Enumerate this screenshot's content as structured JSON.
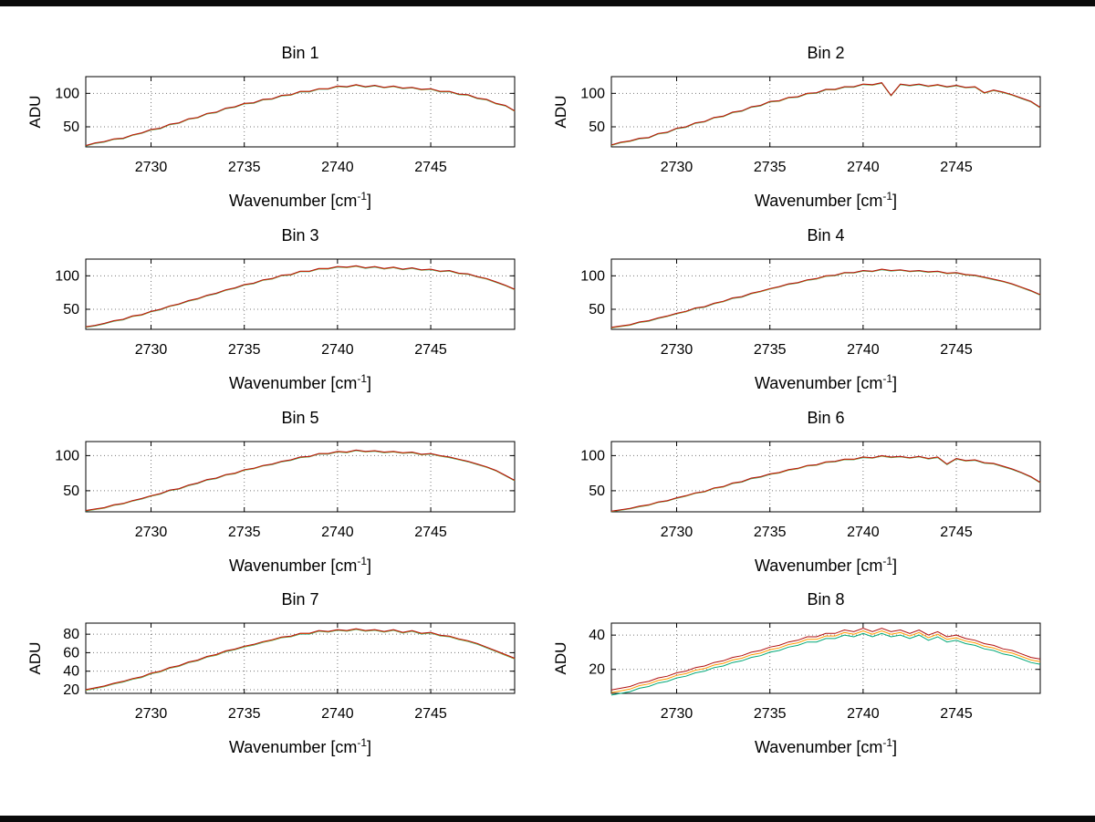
{
  "figure": {
    "background": "#ffffff",
    "border_color": "#0a0a0a"
  },
  "labels": {
    "xlabel_pre": "Wavenumber [cm",
    "xlabel_sup": "-1",
    "xlabel_post": "]"
  },
  "chart_data": {
    "type": "line",
    "x_label": "Wavenumber [cm^-1]",
    "y_label": "ADU",
    "x_start": 2726.5,
    "x_step": 0.5,
    "x_lim": [
      2726.5,
      2749.5
    ],
    "x_ticks": [
      2730,
      2735,
      2740,
      2745
    ],
    "grid": "dotted",
    "bins": [
      {
        "title": "Bin 1",
        "ylabel": "ADU",
        "y_lim": [
          20,
          125
        ],
        "y_ticks": [
          50,
          100
        ],
        "values": [
          22,
          26,
          28,
          32,
          33,
          38,
          41,
          46,
          48,
          54,
          56,
          62,
          64,
          70,
          72,
          78,
          80,
          85,
          86,
          91,
          92,
          97,
          98,
          103,
          103,
          107,
          107,
          111,
          110,
          113,
          110,
          112,
          109,
          111,
          108,
          109,
          106,
          107,
          103,
          103,
          99,
          98,
          93,
          91,
          85,
          82,
          74
        ],
        "series": [
          {
            "name": "trace-green",
            "color": "#00a878",
            "offset": -0.8
          },
          {
            "name": "trace-orange",
            "color": "#ff9900",
            "offset": -0.4
          },
          {
            "name": "trace-red",
            "color": "#b01010",
            "offset": 0
          }
        ]
      },
      {
        "title": "Bin 2",
        "ylabel": "ADU",
        "y_lim": [
          20,
          125
        ],
        "y_ticks": [
          50,
          100
        ],
        "values": [
          23,
          27,
          29,
          33,
          34,
          40,
          42,
          48,
          50,
          56,
          58,
          64,
          66,
          72,
          74,
          80,
          82,
          88,
          89,
          94,
          95,
          100,
          101,
          106,
          106,
          110,
          110,
          114,
          113,
          116,
          97,
          114,
          112,
          114,
          111,
          113,
          110,
          112,
          109,
          110,
          101,
          105,
          102,
          98,
          93,
          88,
          79
        ],
        "series": [
          {
            "name": "trace-green",
            "color": "#00a878",
            "offset": -0.8
          },
          {
            "name": "trace-orange",
            "color": "#ff9900",
            "offset": -0.4
          },
          {
            "name": "trace-red",
            "color": "#b01010",
            "offset": 0
          }
        ]
      },
      {
        "title": "Bin 3",
        "ylabel": "",
        "y_lim": [
          20,
          125
        ],
        "y_ticks": [
          50,
          100
        ],
        "values": [
          24,
          26,
          29,
          33,
          35,
          40,
          42,
          47,
          50,
          55,
          58,
          63,
          66,
          71,
          74,
          79,
          82,
          87,
          89,
          94,
          96,
          101,
          102,
          107,
          107,
          111,
          111,
          114,
          113,
          115,
          112,
          114,
          111,
          113,
          110,
          112,
          109,
          110,
          107,
          108,
          104,
          103,
          99,
          96,
          91,
          86,
          80
        ],
        "series": [
          {
            "name": "trace-green",
            "color": "#00a878",
            "offset": -0.8
          },
          {
            "name": "trace-orange",
            "color": "#ff9900",
            "offset": -0.4
          },
          {
            "name": "trace-red",
            "color": "#b01010",
            "offset": 0
          }
        ]
      },
      {
        "title": "Bin 4",
        "ylabel": "",
        "y_lim": [
          20,
          125
        ],
        "y_ticks": [
          50,
          100
        ],
        "values": [
          23,
          25,
          27,
          31,
          33,
          37,
          40,
          44,
          47,
          52,
          54,
          59,
          62,
          67,
          69,
          74,
          77,
          81,
          84,
          88,
          90,
          94,
          96,
          100,
          101,
          105,
          105,
          108,
          107,
          110,
          108,
          109,
          107,
          108,
          106,
          107,
          104,
          105,
          102,
          101,
          98,
          95,
          92,
          88,
          83,
          78,
          72
        ],
        "series": [
          {
            "name": "trace-green",
            "color": "#00a878",
            "offset": -0.8
          },
          {
            "name": "trace-orange",
            "color": "#ff9900",
            "offset": -0.4
          },
          {
            "name": "trace-red",
            "color": "#b01010",
            "offset": 0
          }
        ]
      },
      {
        "title": "Bin 5",
        "ylabel": "",
        "y_lim": [
          20,
          120
        ],
        "y_ticks": [
          50,
          100
        ],
        "values": [
          22,
          24,
          26,
          30,
          32,
          36,
          39,
          43,
          46,
          51,
          53,
          58,
          61,
          66,
          68,
          73,
          75,
          80,
          82,
          86,
          88,
          92,
          94,
          98,
          99,
          103,
          103,
          106,
          105,
          108,
          106,
          107,
          105,
          106,
          104,
          105,
          102,
          103,
          100,
          98,
          95,
          92,
          88,
          84,
          79,
          72,
          65
        ],
        "series": [
          {
            "name": "trace-green",
            "color": "#00a878",
            "offset": -0.8
          },
          {
            "name": "trace-orange",
            "color": "#ff9900",
            "offset": -0.4
          },
          {
            "name": "trace-red",
            "color": "#b01010",
            "offset": 0
          }
        ]
      },
      {
        "title": "Bin 6",
        "ylabel": "",
        "y_lim": [
          20,
          120
        ],
        "y_ticks": [
          50,
          100
        ],
        "values": [
          21,
          23,
          25,
          28,
          30,
          34,
          36,
          40,
          43,
          47,
          49,
          54,
          56,
          61,
          63,
          68,
          70,
          74,
          76,
          80,
          82,
          86,
          87,
          91,
          92,
          95,
          95,
          98,
          97,
          100,
          98,
          99,
          97,
          99,
          96,
          98,
          88,
          96,
          93,
          94,
          90,
          89,
          85,
          81,
          76,
          70,
          62
        ],
        "series": [
          {
            "name": "trace-green",
            "color": "#00a878",
            "offset": -0.8
          },
          {
            "name": "trace-orange",
            "color": "#ff9900",
            "offset": -0.4
          },
          {
            "name": "trace-red",
            "color": "#b01010",
            "offset": 0
          }
        ]
      },
      {
        "title": "Bin 7",
        "ylabel": "ADU",
        "y_lim": [
          16,
          92
        ],
        "y_ticks": [
          20,
          40,
          60,
          80
        ],
        "values": [
          20,
          22,
          24,
          27,
          29,
          32,
          34,
          38,
          40,
          44,
          46,
          50,
          52,
          56,
          58,
          62,
          64,
          67,
          69,
          72,
          74,
          77,
          78,
          81,
          81,
          84,
          83,
          85,
          84,
          86,
          84,
          85,
          83,
          85,
          82,
          84,
          81,
          82,
          79,
          78,
          75,
          73,
          70,
          66,
          62,
          58,
          54
        ],
        "series": [
          {
            "name": "trace-green",
            "color": "#00a878",
            "offset": -0.8
          },
          {
            "name": "trace-orange",
            "color": "#ff9900",
            "offset": -0.4
          },
          {
            "name": "trace-red",
            "color": "#b01010",
            "offset": 0
          }
        ]
      },
      {
        "title": "Bin 8",
        "ylabel": "ADU",
        "y_lim": [
          6,
          47
        ],
        "y_ticks": [
          20,
          40
        ],
        "values": [
          8,
          9,
          10,
          12,
          13,
          15,
          16,
          18,
          19,
          21,
          22,
          24,
          25,
          27,
          28,
          30,
          31,
          33,
          34,
          36,
          37,
          39,
          39,
          41,
          41,
          43,
          42,
          44,
          42,
          44,
          42,
          43,
          41,
          43,
          40,
          42,
          39,
          40,
          38,
          37,
          35,
          34,
          32,
          31,
          29,
          27,
          26
        ],
        "series": [
          {
            "name": "trace-green",
            "color": "#00a878",
            "offset": -3
          },
          {
            "name": "trace-orange",
            "color": "#ff9900",
            "offset": -1.5
          },
          {
            "name": "trace-red",
            "color": "#b01010",
            "offset": 0
          }
        ]
      }
    ]
  }
}
